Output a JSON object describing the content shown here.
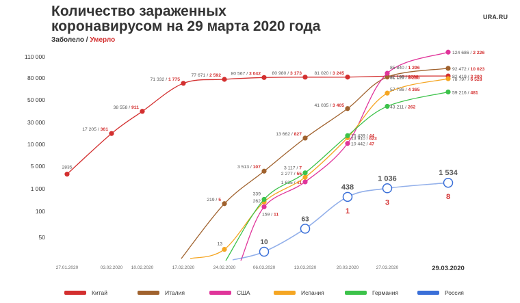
{
  "header": {
    "title_line1": "Количество зараженных",
    "title_line2": "коронавирусом на 29 марта 2020 года",
    "subtitle_cases": "Заболело",
    "subtitle_sep": " / ",
    "subtitle_deaths": "Умерло",
    "logo": "URA.RU"
  },
  "chart_data": {
    "type": "line",
    "title": "Количество зараженных коронавирусом на 29 марта 2020 года",
    "x_ticks": [
      "27.01.2020",
      "03.02.2020",
      "10.02.2020",
      "17.02.2020",
      "24.02.2020",
      "06.03.2020",
      "13.03.2020",
      "20.03.2020",
      "27.03.2020",
      "29.03.2020"
    ],
    "y_ticks": [
      "50",
      "100",
      "1 000",
      "5 000",
      "10 000",
      "30 000",
      "50 000",
      "80 000",
      "110 000"
    ],
    "y_scale": "log (non-uniform)",
    "grid": false,
    "legend_position": "bottom",
    "colors": {
      "Китай": "#d32f2f",
      "Италия": "#a0622e",
      "США": "#e0359a",
      "Испания": "#f5a623",
      "Германия": "#3cc24a",
      "Россия": "#3a6fd8",
      "deaths_label": "#d32f2f",
      "cases_label": "#555555"
    },
    "series": [
      {
        "name": "Китай",
        "points": [
          {
            "date": "27.01.2020",
            "cases": 2835
          },
          {
            "date": "03.02.2020",
            "cases": 17205,
            "deaths": 361
          },
          {
            "date": "10.02.2020",
            "cases": 38558,
            "deaths": 911
          },
          {
            "date": "17.02.2020",
            "cases": 71332,
            "deaths": 1775
          },
          {
            "date": "24.02.2020",
            "cases": 77671,
            "deaths": 2592
          },
          {
            "date": "06.03.2020",
            "cases": 80567,
            "deaths": 3042
          },
          {
            "date": "13.03.2020",
            "cases": 80980,
            "deaths": 3173
          },
          {
            "date": "20.03.2020",
            "cases": 81020,
            "deaths": 3245
          },
          {
            "date": "27.03.2020",
            "cases": 82165,
            "deaths": 3298
          },
          {
            "date": "29.03.2020",
            "cases": 82419,
            "deaths": 3300
          }
        ]
      },
      {
        "name": "Италия",
        "points": [
          {
            "date": "24.02.2020",
            "cases": 219,
            "deaths": 5
          },
          {
            "date": "06.03.2020",
            "cases": 3513,
            "deaths": 107
          },
          {
            "date": "13.03.2020",
            "cases": 13662,
            "deaths": 827
          },
          {
            "date": "20.03.2020",
            "cases": 41035,
            "deaths": 3405
          },
          {
            "date": "27.03.2020",
            "cases": 81129,
            "deaths": 8215
          },
          {
            "date": "29.03.2020",
            "cases": 92472,
            "deaths": 10023
          }
        ]
      },
      {
        "name": "США",
        "points": [
          {
            "date": "06.03.2020",
            "cases": 159,
            "deaths": 11
          },
          {
            "date": "13.03.2020",
            "cases": 1635,
            "deaths": 41
          },
          {
            "date": "20.03.2020",
            "cases": 10442,
            "deaths": 47
          },
          {
            "date": "27.03.2020",
            "cases": 85840,
            "deaths": 1296
          },
          {
            "date": "29.03.2020",
            "cases": 124686,
            "deaths": 2226
          }
        ]
      },
      {
        "name": "Испания",
        "points": [
          {
            "date": "24.02.2020",
            "cases": 13
          },
          {
            "date": "06.03.2020",
            "cases": 262
          },
          {
            "date": "13.03.2020",
            "cases": 2277,
            "deaths": 55
          },
          {
            "date": "20.03.2020",
            "cases": 13910,
            "deaths": 623
          },
          {
            "date": "27.03.2020",
            "cases": 57786,
            "deaths": 4365
          },
          {
            "date": "29.03.2020",
            "cases": 78797,
            "deaths": 6528
          }
        ]
      },
      {
        "name": "Германия",
        "points": [
          {
            "date": "06.03.2020",
            "cases": 339
          },
          {
            "date": "13.03.2020",
            "cases": 3117,
            "deaths": 7
          },
          {
            "date": "20.03.2020",
            "cases": 15439,
            "deaths": 44
          },
          {
            "date": "27.03.2020",
            "cases": 43211,
            "deaths": 262
          },
          {
            "date": "29.03.2020",
            "cases": 59216,
            "deaths": 481
          }
        ]
      },
      {
        "name": "Россия",
        "points": [
          {
            "date": "06.03.2020",
            "cases": 10
          },
          {
            "date": "13.03.2020",
            "cases": 63
          },
          {
            "date": "20.03.2020",
            "cases": 438,
            "deaths": 1
          },
          {
            "date": "27.03.2020",
            "cases": 1036,
            "deaths": 3
          },
          {
            "date": "29.03.2020",
            "cases": 1534,
            "deaths": 8
          }
        ]
      }
    ],
    "point_labels": {
      "Китай": [
        "2835",
        "17 205 / ",
        "38 558 / ",
        "71 332 / ",
        "77 671 / ",
        "80 567 / ",
        "80 980 / ",
        "81 020 / ",
        "82 165 / ",
        "82 419 / "
      ],
      "Китай_deaths": [
        "",
        "361",
        "911",
        "1 775",
        "2 592",
        "3 042",
        "3 173",
        "3 245",
        "3298",
        "3 300"
      ],
      "Италия": [
        "219 / ",
        "3 513 / ",
        "13 662 / ",
        "41 035 / ",
        "81 129 / ",
        "92 472 / "
      ],
      "Италия_deaths": [
        "5",
        "107",
        "827",
        "3 405",
        "8 215",
        "10 023"
      ],
      "США": [
        "159 / ",
        "1 635 / ",
        "10 442 / ",
        "85 840 / ",
        "124 686 / "
      ],
      "США_deaths": [
        "11",
        "41",
        "47",
        "1 296",
        "2 226"
      ],
      "Испания": [
        "13",
        "262",
        "2 277 / ",
        "13 910 / ",
        "57 786 / ",
        "78 797 / "
      ],
      "Испания_deaths": [
        "",
        "",
        "55",
        "623",
        "4 365",
        "6 528"
      ],
      "Германия": [
        "339",
        "3 117 / ",
        "15 439 / ",
        "43 211 / ",
        "59 216 / "
      ],
      "Германия_deaths": [
        "",
        "7",
        "44",
        "262",
        "481"
      ],
      "Россия": [
        "10",
        "63",
        "438",
        "1 036",
        "1 534"
      ],
      "Россия_deaths": [
        "",
        "",
        "1",
        "3",
        "8"
      ]
    }
  }
}
